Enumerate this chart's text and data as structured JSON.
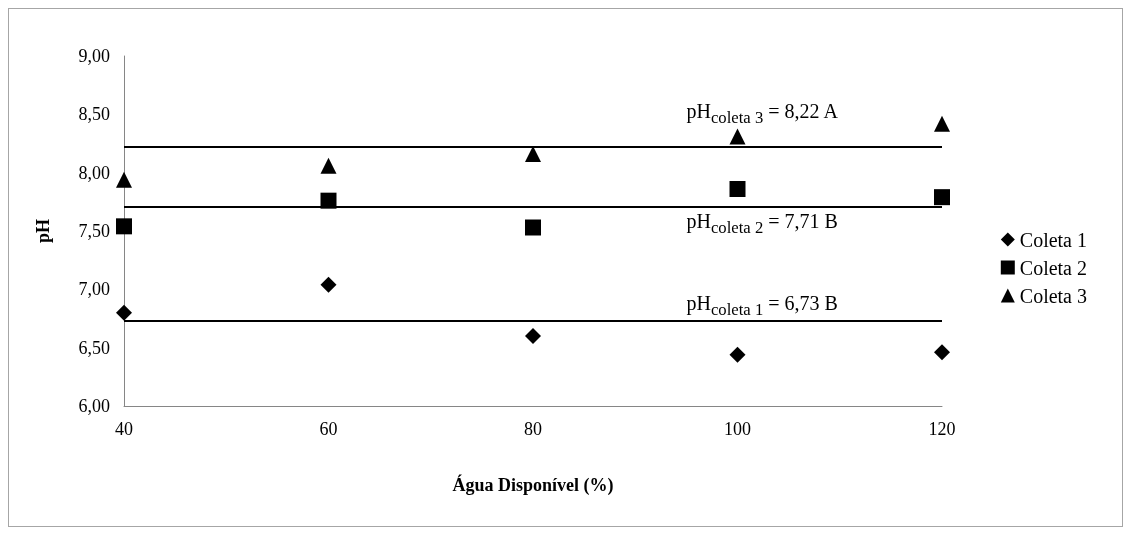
{
  "chart_data": {
    "type": "scatter",
    "xlabel": "Água Disponível (%)",
    "ylabel": "pH",
    "x": [
      40,
      60,
      80,
      100,
      120
    ],
    "series": [
      {
        "name": "Coleta 1",
        "color": "#000000",
        "marker": "diamond",
        "values": [
          6.8,
          7.04,
          6.6,
          6.44,
          6.46
        ]
      },
      {
        "name": "Coleta 2",
        "color": "#000000",
        "marker": "square",
        "values": [
          7.54,
          7.76,
          7.53,
          7.86,
          7.79
        ]
      },
      {
        "name": "Coleta 3",
        "color": "#000000",
        "marker": "triangle",
        "values": [
          7.94,
          8.06,
          8.16,
          8.31,
          8.42
        ]
      }
    ],
    "xlim": [
      40,
      120
    ],
    "xticks": [
      40,
      60,
      80,
      100,
      120
    ],
    "ylim": [
      6,
      9
    ],
    "yticks": [
      {
        "value": 6,
        "label": "6,00"
      },
      {
        "value": 6.5,
        "label": "6,50"
      },
      {
        "value": 7,
        "label": "7,00"
      },
      {
        "value": 7.5,
        "label": "7,50"
      },
      {
        "value": 8,
        "label": "8,00"
      },
      {
        "value": 8.5,
        "label": "8,50"
      },
      {
        "value": 9,
        "label": "9,00"
      }
    ],
    "ref_lines": [
      {
        "axis": "y",
        "value": 6.73,
        "label": "pH$_{coleta 1}$ = 6,73 B",
        "color": "#000000"
      },
      {
        "axis": "y",
        "value": 7.71,
        "label": "pH$_{coleta 2}$ = 7,71 B",
        "color": "#000000"
      },
      {
        "axis": "y",
        "value": 8.22,
        "label": "pH$_{coleta 3}$ = 8,22 A",
        "color": "#000000"
      }
    ],
    "grid": false,
    "legend": "right"
  }
}
